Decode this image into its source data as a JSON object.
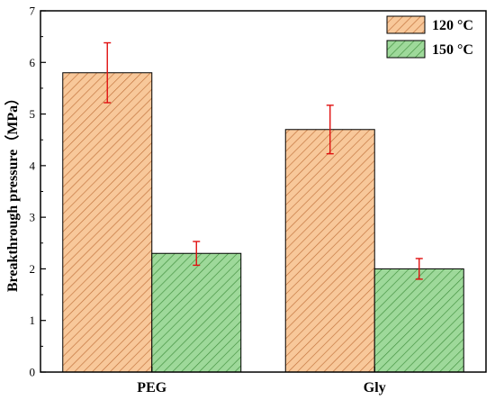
{
  "chart_data": {
    "type": "bar",
    "title": "",
    "xlabel": "",
    "ylabel": "Breakthrough pressure（MPa）",
    "ylim": [
      0,
      7
    ],
    "yticks": [
      0,
      1,
      2,
      3,
      4,
      5,
      6,
      7
    ],
    "categories": [
      "PEG",
      "Gly"
    ],
    "grid": false,
    "legend_position": "top-right",
    "series": [
      {
        "name": "120 °C",
        "values": [
          5.8,
          4.7
        ],
        "errors": [
          0.58,
          0.47
        ],
        "fill": "#f8c89a",
        "hatch": "#c0703a"
      },
      {
        "name": "150 °C",
        "values": [
          2.3,
          2.0
        ],
        "errors": [
          0.23,
          0.2
        ],
        "fill": "#9ed99a",
        "hatch": "#3f8f3c"
      }
    ],
    "error_bar_color": "#e01010"
  }
}
